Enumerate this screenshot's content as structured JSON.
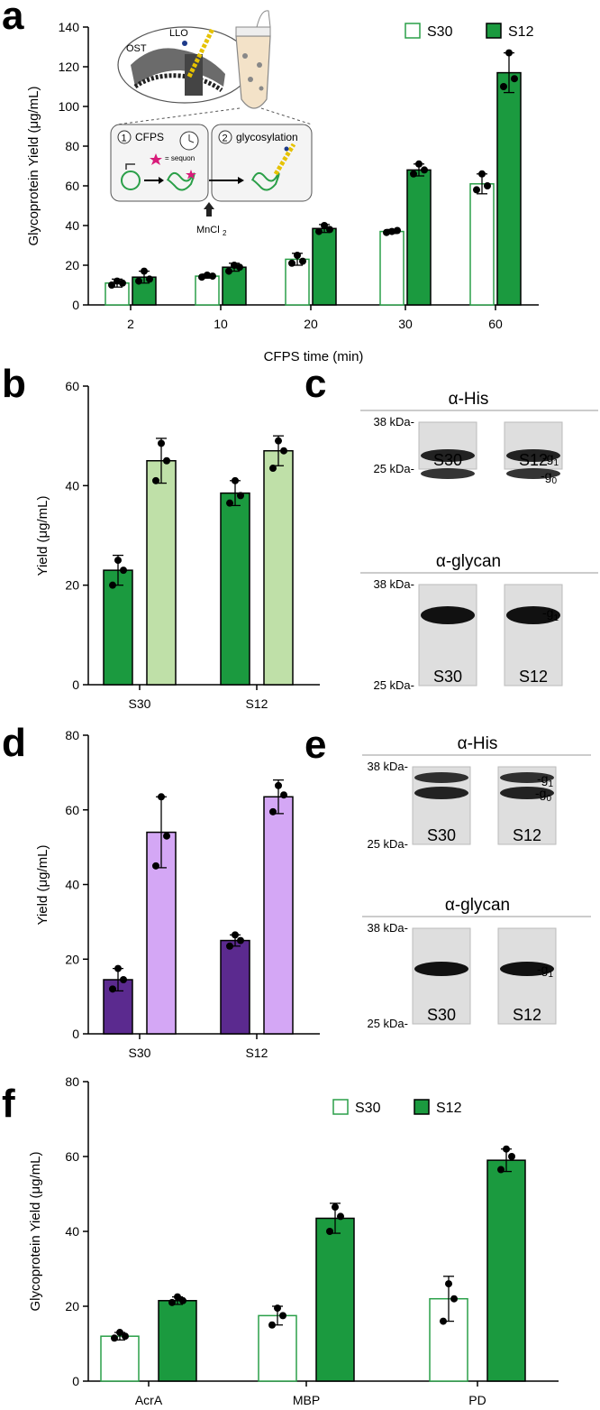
{
  "panels": {
    "a": "a",
    "b": "b",
    "c": "c",
    "d": "d",
    "e": "e",
    "f": "f"
  },
  "colors": {
    "s30": "#2a9f48",
    "s12": "#1b9a3f",
    "light_green": "#bfe0a8",
    "dark_purple": "#5b2a8f",
    "light_purple": "#d4a7f5"
  },
  "schematic": {
    "ost": "OST",
    "llo": "LLO",
    "step1": "1",
    "step1_label": "CFPS",
    "step2": "2",
    "step2_label": "glycosylation",
    "sequon_note": "= sequon",
    "mncl": "MnCl",
    "mncl_sub": "2"
  },
  "blots": {
    "c_top": {
      "title": "α-His",
      "mw_high": "38 kDa-",
      "mw_low": "25 kDa-",
      "lanes": [
        "S30",
        "S12"
      ],
      "bands": [
        "g",
        "g"
      ],
      "band_subs": [
        "1",
        "0"
      ]
    },
    "c_bottom": {
      "title": "α-glycan",
      "mw_high": "38 kDa-",
      "mw_low": "25 kDa-",
      "lanes": [
        "S30",
        "S12"
      ],
      "bands": [
        "g"
      ],
      "band_subs": [
        "1"
      ]
    },
    "e_top": {
      "title": "α-His",
      "mw_high": "38 kDa-",
      "mw_low": "25 kDa-",
      "lanes": [
        "S30",
        "S12"
      ],
      "bands": [
        "g",
        "g"
      ],
      "band_subs": [
        "1",
        "0"
      ]
    },
    "e_bottom": {
      "title": "α-glycan",
      "mw_high": "38 kDa-",
      "mw_low": "25 kDa-",
      "lanes": [
        "S30",
        "S12"
      ],
      "bands": [
        "g"
      ],
      "band_subs": [
        "1"
      ]
    }
  },
  "chart_data": [
    {
      "panel": "a",
      "type": "bar",
      "xlabel": "CFPS time (min)",
      "ylabel": "Glycoprotein Yield (μg/mL)",
      "ylim": [
        0,
        140
      ],
      "yticks": [
        0,
        20,
        40,
        60,
        80,
        100,
        120,
        140
      ],
      "categories": [
        "2",
        "10",
        "20",
        "30",
        "60"
      ],
      "legend": "top-right",
      "series": [
        {
          "name": "S30",
          "style": "open",
          "values": [
            11,
            14.5,
            23,
            37,
            61
          ],
          "errors": [
            2,
            1,
            3,
            1,
            5
          ],
          "points": [
            [
              10,
              12,
              11
            ],
            [
              14,
              15,
              14.5
            ],
            [
              21,
              25,
              22
            ],
            [
              36.5,
              37,
              37.5
            ],
            [
              58,
              66,
              60
            ]
          ]
        },
        {
          "name": "S12",
          "style": "filled",
          "values": [
            14,
            19,
            38.5,
            68,
            117
          ],
          "errors": [
            3,
            2,
            2,
            3,
            10
          ],
          "points": [
            [
              12,
              17,
              13
            ],
            [
              17,
              20,
              19
            ],
            [
              37,
              40,
              38
            ],
            [
              66,
              71,
              68
            ],
            [
              110,
              127,
              114
            ]
          ]
        }
      ]
    },
    {
      "panel": "b",
      "type": "bar",
      "xlabel": "",
      "ylabel": "Yield (μg/mL)",
      "ylim": [
        0,
        60
      ],
      "yticks": [
        0,
        20,
        40,
        60
      ],
      "categories": [
        "S30",
        "S12"
      ],
      "series": [
        {
          "values": [
            23,
            38.5
          ],
          "errors": [
            3,
            2.5
          ],
          "points": [
            [
              20,
              25,
              23
            ],
            [
              36.5,
              41,
              38
            ]
          ],
          "color": "dark_green"
        },
        {
          "values": [
            45,
            47
          ],
          "errors": [
            4.5,
            3
          ],
          "points": [
            [
              41,
              48.5,
              45
            ],
            [
              43.5,
              49,
              47
            ]
          ],
          "color": "light_green"
        }
      ]
    },
    {
      "panel": "d",
      "type": "bar",
      "xlabel": "",
      "ylabel": "Yield (μg/mL)",
      "ylim": [
        0,
        80
      ],
      "yticks": [
        0,
        20,
        40,
        60,
        80
      ],
      "categories": [
        "S30",
        "S12"
      ],
      "series": [
        {
          "values": [
            14.5,
            25
          ],
          "errors": [
            3,
            1.5
          ],
          "points": [
            [
              12,
              17.5,
              14.5
            ],
            [
              23.5,
              26.5,
              25
            ]
          ],
          "color": "dark_purple"
        },
        {
          "values": [
            54,
            63.5
          ],
          "errors": [
            9.5,
            4.5
          ],
          "points": [
            [
              45,
              63.5,
              53
            ],
            [
              59.5,
              66.5,
              64
            ]
          ],
          "color": "light_purple"
        }
      ]
    },
    {
      "panel": "f",
      "type": "bar",
      "xlabel": "",
      "ylabel": "Glycoprotein Yield (μg/mL)",
      "ylim": [
        0,
        80
      ],
      "yticks": [
        0,
        20,
        40,
        60,
        80
      ],
      "categories": [
        "AcrA",
        "MBP",
        "PD"
      ],
      "legend": "top-right",
      "series": [
        {
          "name": "S30",
          "style": "open",
          "values": [
            12,
            17.5,
            22
          ],
          "errors": [
            1,
            2.5,
            6
          ],
          "points": [
            [
              11.5,
              13,
              12
            ],
            [
              15,
              19.5,
              17.5
            ],
            [
              16,
              26,
              22
            ]
          ]
        },
        {
          "name": "S12",
          "style": "filled",
          "values": [
            21.5,
            43.5,
            59
          ],
          "errors": [
            1,
            4,
            3
          ],
          "points": [
            [
              21,
              22.5,
              21.5
            ],
            [
              40,
              46.5,
              44
            ],
            [
              56.5,
              62,
              60
            ]
          ]
        }
      ]
    }
  ]
}
